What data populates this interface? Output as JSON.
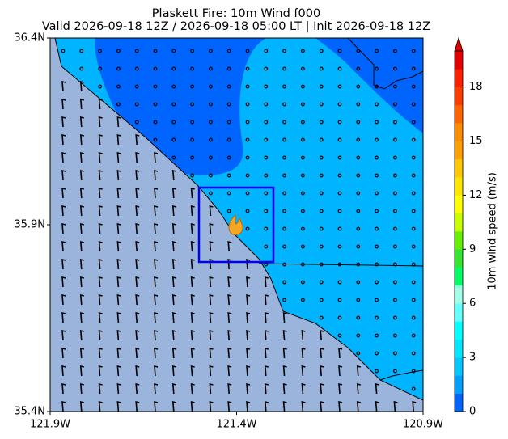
{
  "map": {
    "title": "Plaskett Fire: 10m Wind f000",
    "subtitle": "Valid 2026-09-18 12Z / 2026-09-18 05:00 LT | Init 2026-09-18 12Z",
    "xlim": [
      -121.9,
      -120.9
    ],
    "ylim": [
      35.4,
      36.4
    ],
    "xticks": [
      {
        "value": -121.9,
        "label": "121.9W"
      },
      {
        "value": -121.4,
        "label": "121.4W"
      },
      {
        "value": -120.9,
        "label": "120.9W"
      }
    ],
    "yticks": [
      {
        "value": 35.4,
        "label": "35.4N"
      },
      {
        "value": 35.9,
        "label": "35.9N"
      },
      {
        "value": 36.4,
        "label": "36.4N"
      }
    ],
    "colorbar": {
      "label": "10m wind speed (m/s)",
      "lim": [
        0,
        20
      ],
      "ticks": [
        0,
        3,
        6,
        9,
        12,
        15,
        18
      ],
      "colors": [
        "#0064ff",
        "#00a0ff",
        "#00c8ff",
        "#00e6ff",
        "#00ffff",
        "#64ffff",
        "#a0ffe6",
        "#00ff64",
        "#32e632",
        "#64f000",
        "#c8ff00",
        "#ffff00",
        "#ffe600",
        "#ffc800",
        "#ffa000",
        "#ff8c00",
        "#ff6400",
        "#ff3c00",
        "#ff1e00",
        "#e60000"
      ]
    }
  }
}
